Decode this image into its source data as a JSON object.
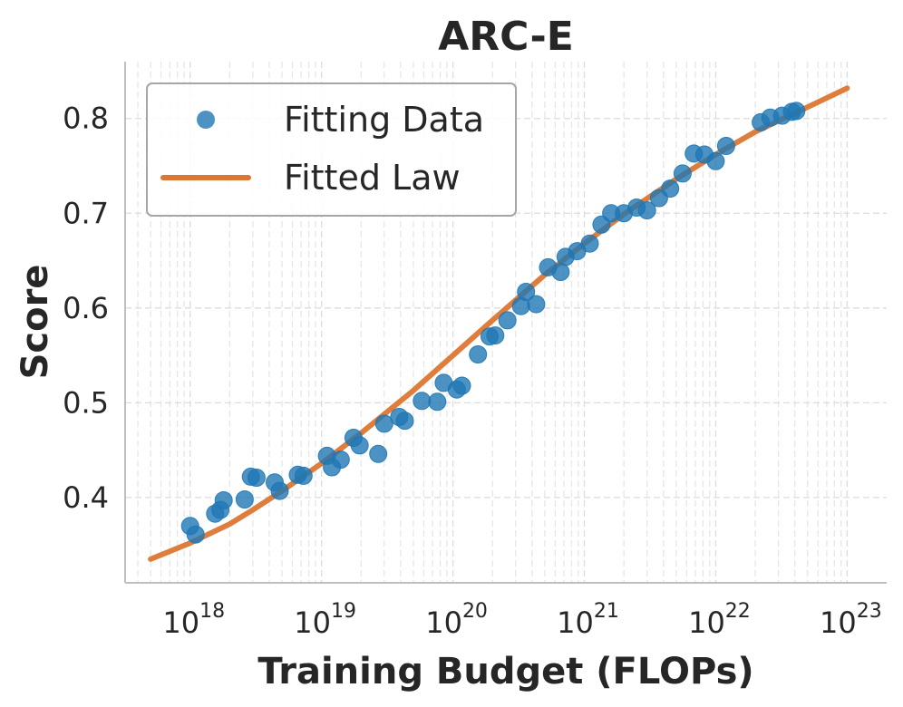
{
  "chart_data": {
    "type": "scatter",
    "title": "ARC-E",
    "xlabel": "Training Budget (FLOPs)",
    "ylabel": "Score",
    "x_scale": "log",
    "xlim": [
      3.2e+17,
      2e+23
    ],
    "ylim": [
      0.31,
      0.86
    ],
    "x_ticks": [
      {
        "value": 1e+18,
        "base": "10",
        "exp": "18"
      },
      {
        "value": 1e+19,
        "base": "10",
        "exp": "19"
      },
      {
        "value": 1e+20,
        "base": "10",
        "exp": "20"
      },
      {
        "value": 1e+21,
        "base": "10",
        "exp": "21"
      },
      {
        "value": 1e+22,
        "base": "10",
        "exp": "22"
      },
      {
        "value": 1e+23,
        "base": "10",
        "exp": "23"
      }
    ],
    "y_ticks": [
      {
        "value": 0.4,
        "label": "0.4"
      },
      {
        "value": 0.5,
        "label": "0.5"
      },
      {
        "value": 0.6,
        "label": "0.6"
      },
      {
        "value": 0.7,
        "label": "0.7"
      },
      {
        "value": 0.8,
        "label": "0.8"
      }
    ],
    "grid": true,
    "legend": {
      "position": "top-left",
      "entries": [
        {
          "label": "Fitting Data",
          "marker": "circle",
          "color": "#1f77b4"
        },
        {
          "label": "Fitted Law",
          "marker": "line",
          "color": "#dd7631"
        }
      ]
    },
    "series": [
      {
        "name": "Fitting Data",
        "type": "scatter",
        "color": "#1f77b4",
        "points": [
          [
            1e+18,
            0.37
          ],
          [
            1.1e+18,
            0.361
          ],
          [
            1.55e+18,
            0.383
          ],
          [
            1.7e+18,
            0.387
          ],
          [
            1.8e+18,
            0.397
          ],
          [
            2.6e+18,
            0.398
          ],
          [
            2.9e+18,
            0.422
          ],
          [
            3.2e+18,
            0.421
          ],
          [
            4.4e+18,
            0.416
          ],
          [
            4.8e+18,
            0.407
          ],
          [
            6.6e+18,
            0.424
          ],
          [
            7.3e+18,
            0.423
          ],
          [
            1.1e+19,
            0.444
          ],
          [
            1.2e+19,
            0.432
          ],
          [
            1.4e+19,
            0.44
          ],
          [
            1.75e+19,
            0.463
          ],
          [
            1.95e+19,
            0.455
          ],
          [
            2.7e+19,
            0.446
          ],
          [
            3e+19,
            0.478
          ],
          [
            3.9e+19,
            0.485
          ],
          [
            4.3e+19,
            0.481
          ],
          [
            5.8e+19,
            0.502
          ],
          [
            7.6e+19,
            0.501
          ],
          [
            8.5e+19,
            0.521
          ],
          [
            1.07e+20,
            0.514
          ],
          [
            1.17e+20,
            0.518
          ],
          [
            1.55e+20,
            0.551
          ],
          [
            1.9e+20,
            0.57
          ],
          [
            2.1e+20,
            0.571
          ],
          [
            2.6e+20,
            0.587
          ],
          [
            3.3e+20,
            0.602
          ],
          [
            3.6e+20,
            0.617
          ],
          [
            4.3e+20,
            0.604
          ],
          [
            5.3e+20,
            0.643
          ],
          [
            6.6e+20,
            0.638
          ],
          [
            7.2e+20,
            0.654
          ],
          [
            8.8e+20,
            0.66
          ],
          [
            1.1e+21,
            0.668
          ],
          [
            1.35e+21,
            0.688
          ],
          [
            1.6e+21,
            0.7
          ],
          [
            2e+21,
            0.7
          ],
          [
            2.5e+21,
            0.706
          ],
          [
            3e+21,
            0.703
          ],
          [
            3.7e+21,
            0.716
          ],
          [
            4.5e+21,
            0.726
          ],
          [
            5.6e+21,
            0.742
          ],
          [
            6.8e+21,
            0.763
          ],
          [
            8.2e+21,
            0.762
          ],
          [
            1e+22,
            0.755
          ],
          [
            1.2e+22,
            0.771
          ],
          [
            2.2e+22,
            0.796
          ],
          [
            2.6e+22,
            0.801
          ],
          [
            3.2e+22,
            0.803
          ],
          [
            3.8e+22,
            0.807
          ],
          [
            4.1e+22,
            0.808
          ]
        ]
      },
      {
        "name": "Fitted Law",
        "type": "line",
        "color": "#dd7631",
        "points": [
          [
            5e+17,
            0.335
          ],
          [
            1e+18,
            0.352
          ],
          [
            2e+18,
            0.372
          ],
          [
            3e+18,
            0.387
          ],
          [
            5e+18,
            0.407
          ],
          [
            1e+19,
            0.436
          ],
          [
            2e+19,
            0.468
          ],
          [
            5e+19,
            0.513
          ],
          [
            1e+20,
            0.55
          ],
          [
            2e+20,
            0.587
          ],
          [
            5e+20,
            0.635
          ],
          [
            1e+21,
            0.668
          ],
          [
            2e+21,
            0.699
          ],
          [
            5e+21,
            0.736
          ],
          [
            1e+22,
            0.762
          ],
          [
            2e+22,
            0.786
          ],
          [
            5e+22,
            0.812
          ],
          [
            1e+23,
            0.832
          ]
        ]
      }
    ]
  }
}
